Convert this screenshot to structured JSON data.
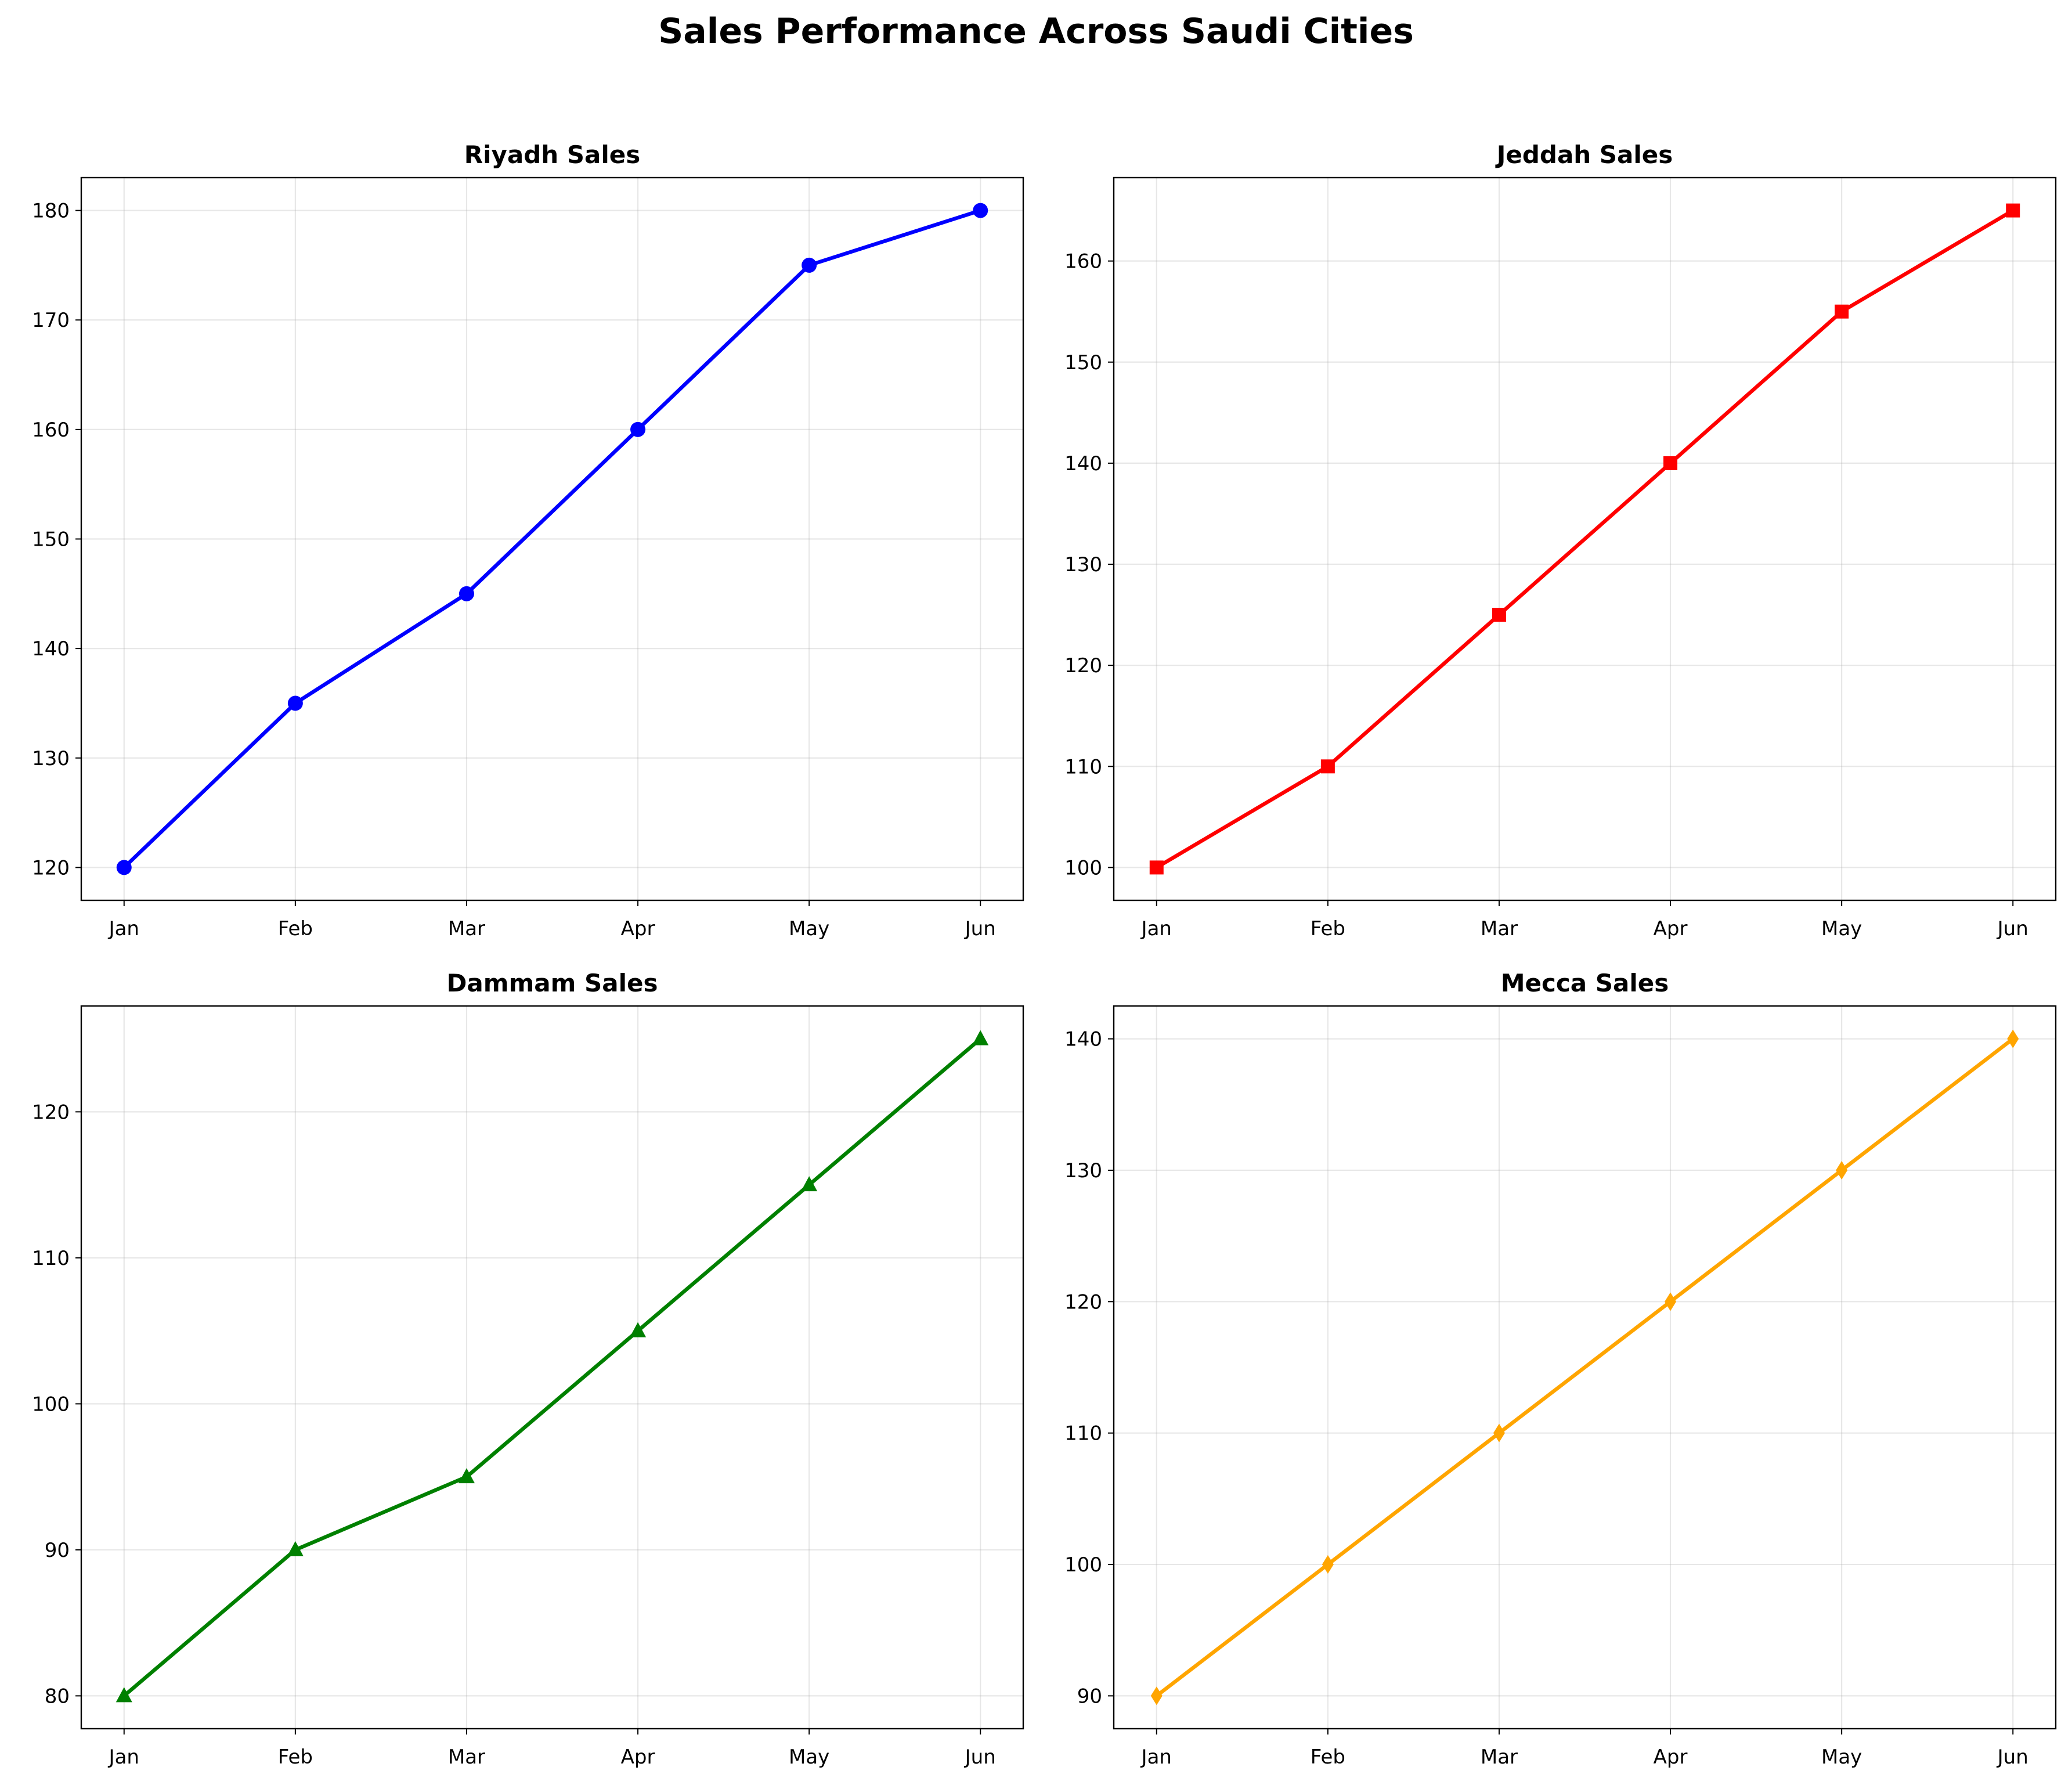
{
  "figure": {
    "title": "Sales Performance Across Saudi Cities"
  },
  "chart_data": [
    {
      "type": "line",
      "title": "Riyadh Sales",
      "categories": [
        "Jan",
        "Feb",
        "Mar",
        "Apr",
        "May",
        "Jun"
      ],
      "values": [
        120,
        135,
        145,
        160,
        175,
        180
      ],
      "ylim": [
        117,
        183
      ],
      "yticks": [
        120,
        130,
        140,
        150,
        160,
        170,
        180
      ],
      "color": "#0000ff",
      "marker": "circle",
      "grid": true
    },
    {
      "type": "line",
      "title": "Jeddah Sales",
      "categories": [
        "Jan",
        "Feb",
        "Mar",
        "Apr",
        "May",
        "Jun"
      ],
      "values": [
        100,
        110,
        125,
        140,
        155,
        165
      ],
      "ylim": [
        96.75,
        168.25
      ],
      "yticks": [
        100,
        110,
        120,
        130,
        140,
        150,
        160
      ],
      "color": "#ff0000",
      "marker": "square",
      "grid": true
    },
    {
      "type": "line",
      "title": "Dammam Sales",
      "categories": [
        "Jan",
        "Feb",
        "Mar",
        "Apr",
        "May",
        "Jun"
      ],
      "values": [
        80,
        90,
        95,
        105,
        115,
        125
      ],
      "ylim": [
        77.75,
        127.25
      ],
      "yticks": [
        80,
        90,
        100,
        110,
        120
      ],
      "color": "#008000",
      "marker": "triangle",
      "grid": true
    },
    {
      "type": "line",
      "title": "Mecca Sales",
      "categories": [
        "Jan",
        "Feb",
        "Mar",
        "Apr",
        "May",
        "Jun"
      ],
      "values": [
        90,
        100,
        110,
        120,
        130,
        140
      ],
      "ylim": [
        87.5,
        142.5
      ],
      "yticks": [
        90,
        100,
        110,
        120,
        130,
        140
      ],
      "color": "#ffa500",
      "marker": "diamond",
      "grid": true
    }
  ]
}
